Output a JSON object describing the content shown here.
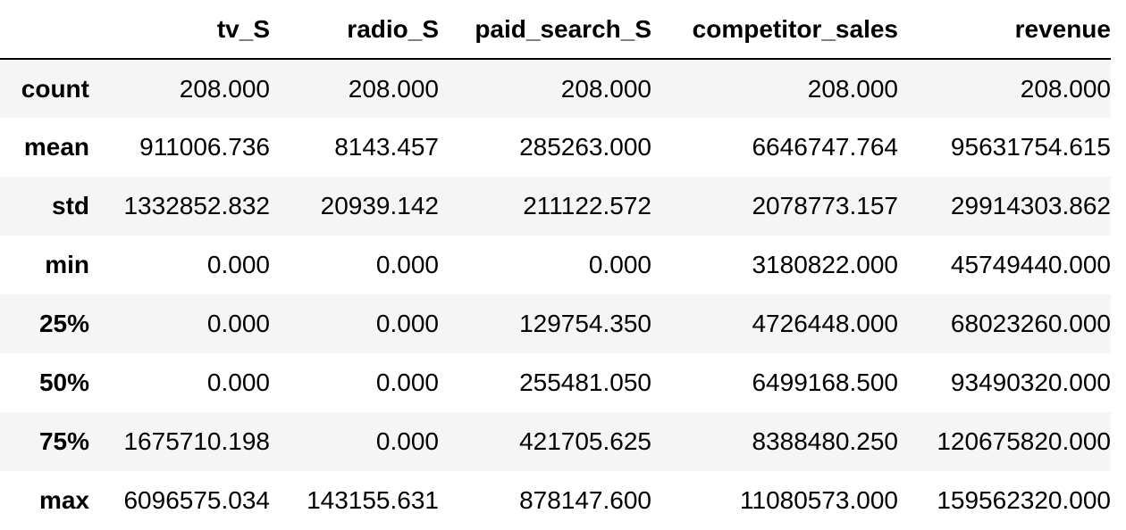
{
  "table": {
    "columns": [
      "tv_S",
      "radio_S",
      "paid_search_S",
      "competitor_sales",
      "revenue"
    ],
    "rows": [
      {
        "label": "count",
        "values": [
          "208.000",
          "208.000",
          "208.000",
          "208.000",
          "208.000"
        ]
      },
      {
        "label": "mean",
        "values": [
          "911006.736",
          "8143.457",
          "285263.000",
          "6646747.764",
          "95631754.615"
        ]
      },
      {
        "label": "std",
        "values": [
          "1332852.832",
          "20939.142",
          "211122.572",
          "2078773.157",
          "29914303.862"
        ]
      },
      {
        "label": "min",
        "values": [
          "0.000",
          "0.000",
          "0.000",
          "3180822.000",
          "45749440.000"
        ]
      },
      {
        "label": "25%",
        "values": [
          "0.000",
          "0.000",
          "129754.350",
          "4726448.000",
          "68023260.000"
        ]
      },
      {
        "label": "50%",
        "values": [
          "0.000",
          "0.000",
          "255481.050",
          "6499168.500",
          "93490320.000"
        ]
      },
      {
        "label": "75%",
        "values": [
          "1675710.198",
          "0.000",
          "421705.625",
          "8388480.250",
          "120675820.000"
        ]
      },
      {
        "label": "max",
        "values": [
          "6096575.034",
          "143155.631",
          "878147.600",
          "11080573.000",
          "159562320.000"
        ]
      }
    ]
  }
}
